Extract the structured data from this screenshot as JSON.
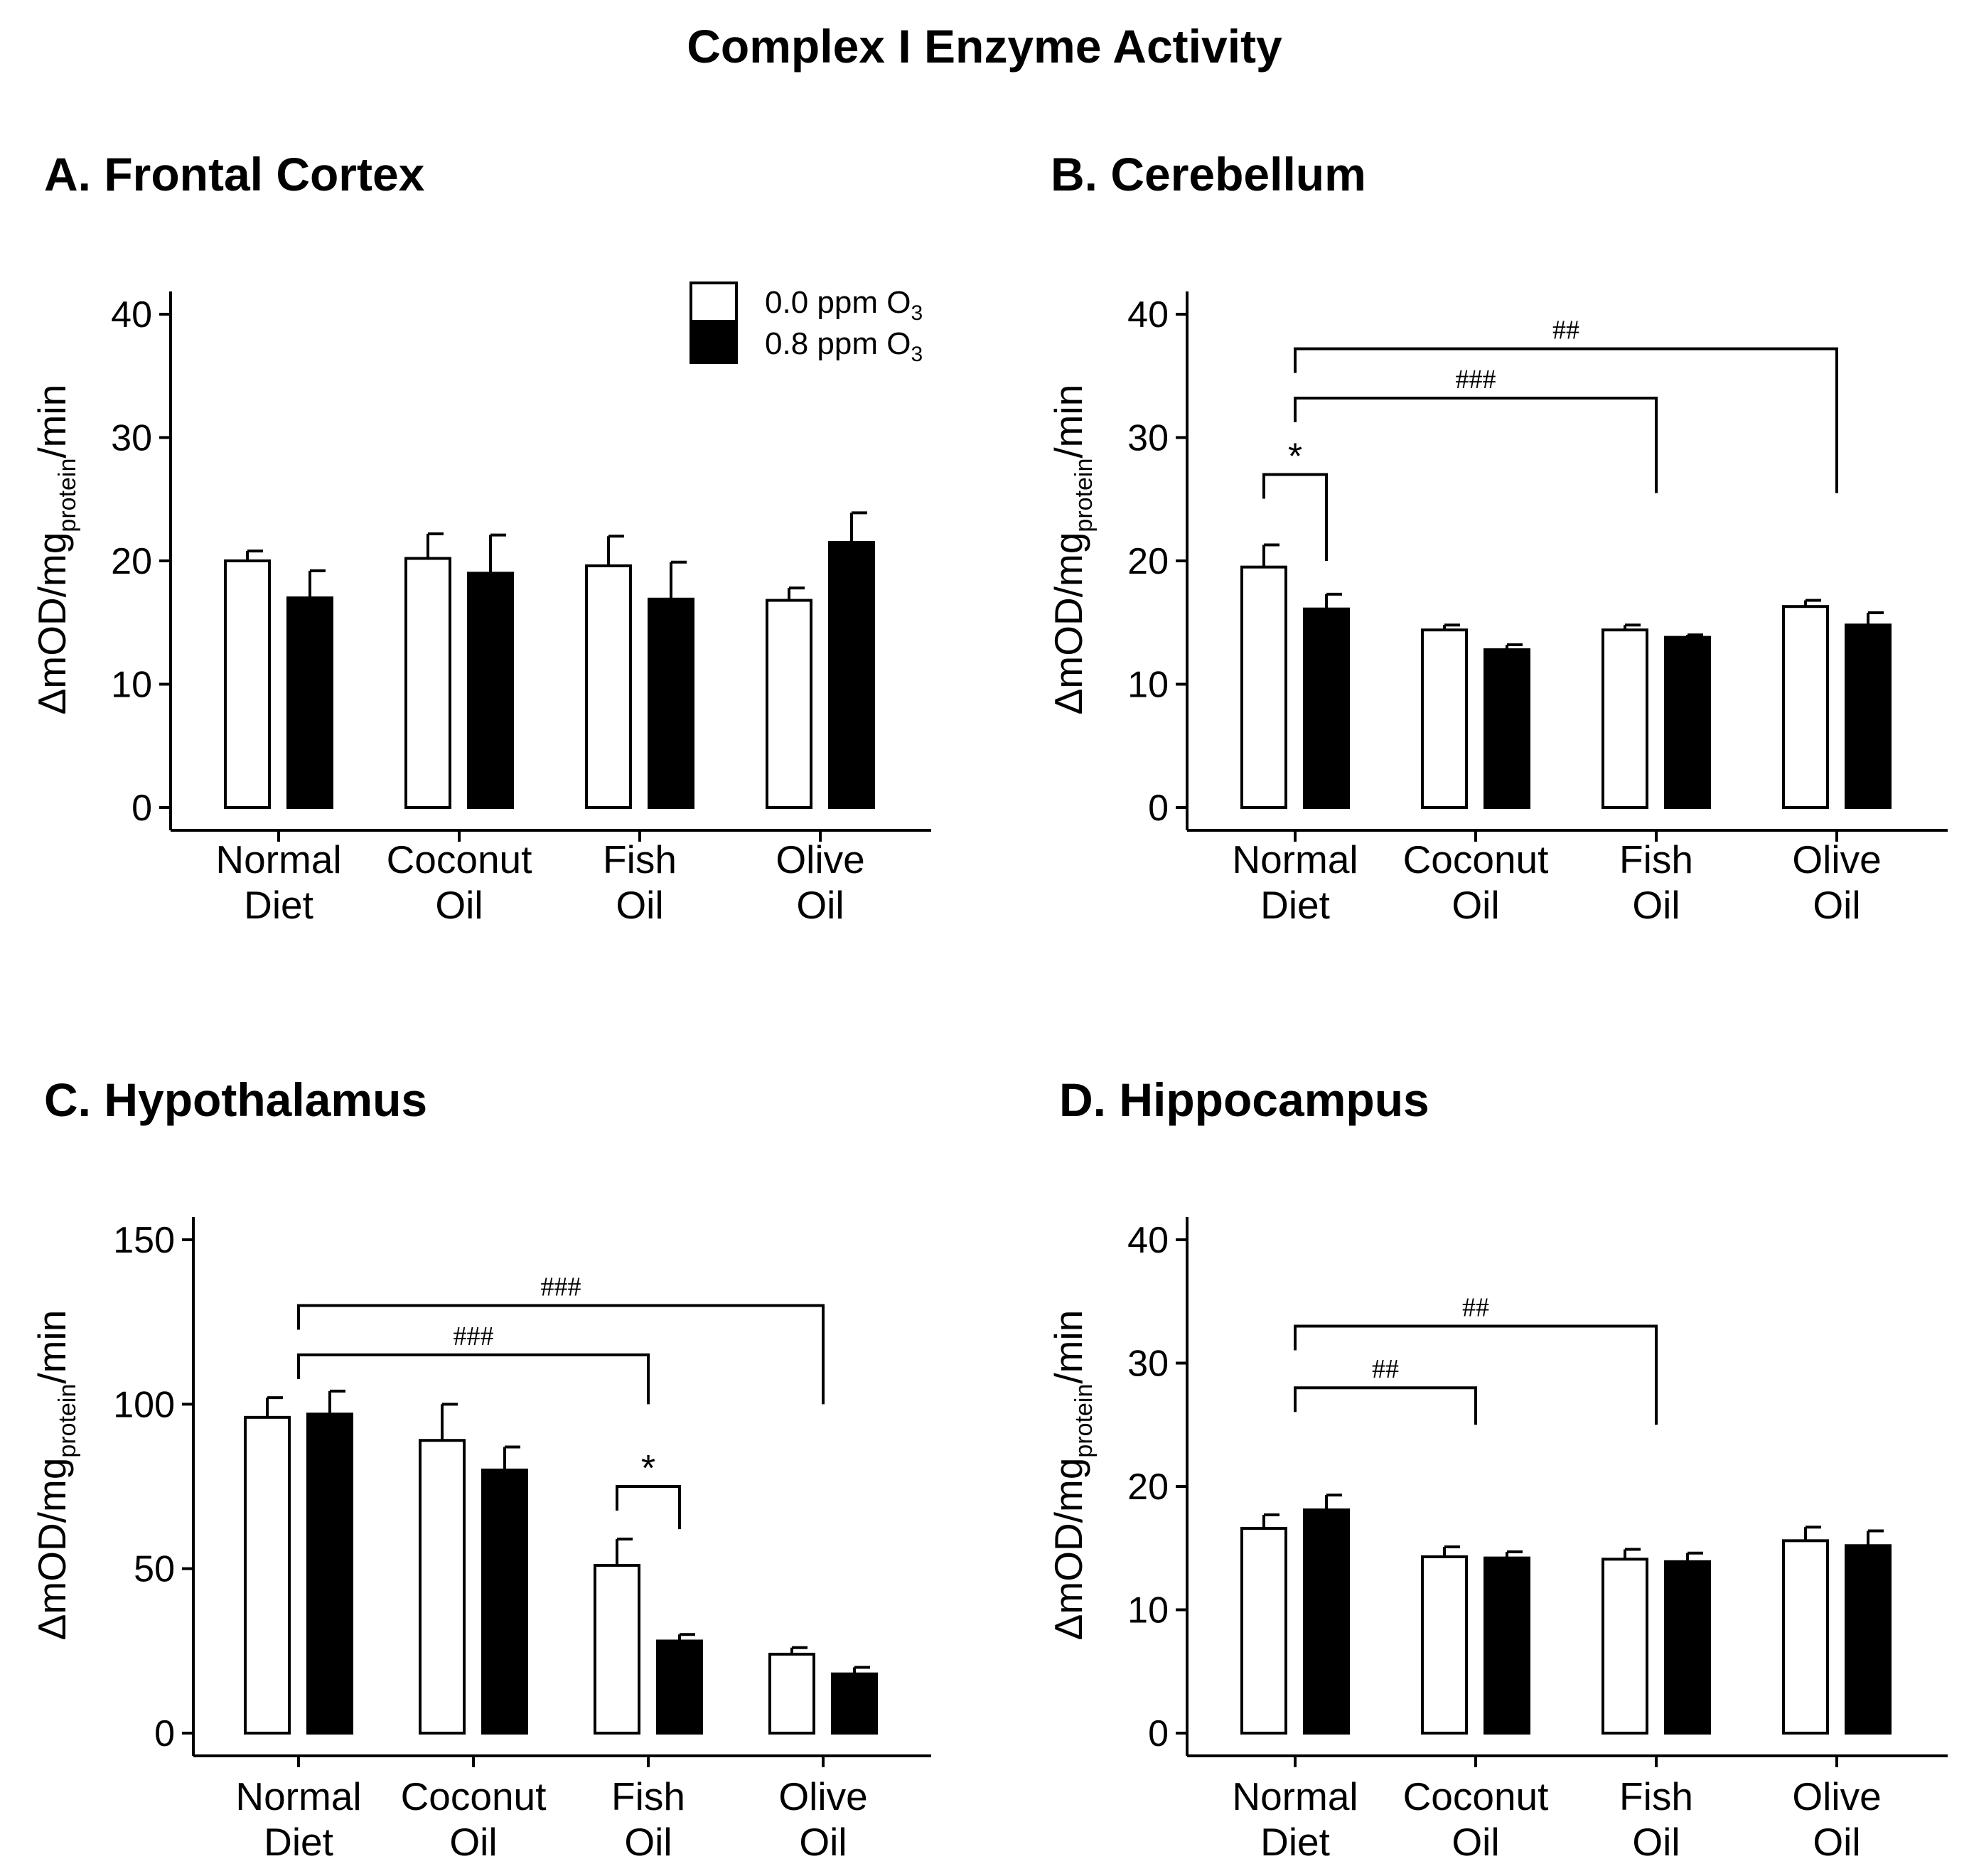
{
  "figure": {
    "title": "Complex I Enzyme Activity"
  },
  "legend": {
    "control_label": "0.0 ppm O",
    "exposed_label": "0.8 ppm O",
    "subscript": "3",
    "control_color": "#ffffff",
    "exposed_color": "#000000"
  },
  "colors": {
    "outline": "#000000",
    "background": "#ffffff"
  },
  "chart_data": [
    {
      "id": "A",
      "type": "bar",
      "title": "A. Frontal Cortex",
      "ylabel_main": "ΔmOD/mg",
      "ylabel_sub": "protein",
      "ylabel_tail": "/min",
      "categories": [
        [
          "Normal",
          "Diet"
        ],
        [
          "Coconut",
          "Oil"
        ],
        [
          "Fish",
          "Oil"
        ],
        [
          "Olive",
          "Oil"
        ]
      ],
      "ylim": [
        0,
        40
      ],
      "yticks": [
        0,
        10,
        20,
        30,
        40
      ],
      "series": [
        {
          "name": "0.0 ppm O3",
          "values": [
            20.0,
            20.2,
            19.6,
            16.8
          ],
          "errors": [
            0.8,
            2.0,
            2.4,
            1.0
          ]
        },
        {
          "name": "0.8 ppm O3",
          "values": [
            17.0,
            19.0,
            16.9,
            21.5
          ],
          "errors": [
            2.2,
            3.1,
            3.0,
            2.4
          ]
        }
      ],
      "brackets": [],
      "show_legend": true
    },
    {
      "id": "B",
      "type": "bar",
      "title": "B. Cerebellum",
      "ylabel_main": "ΔmOD/mg",
      "ylabel_sub": "protein",
      "ylabel_tail": "/min",
      "categories": [
        [
          "Normal",
          "Diet"
        ],
        [
          "Coconut",
          "Oil"
        ],
        [
          "Fish",
          "Oil"
        ],
        [
          "Olive",
          "Oil"
        ]
      ],
      "ylim": [
        0,
        40
      ],
      "yticks": [
        0,
        10,
        20,
        30,
        40
      ],
      "series": [
        {
          "name": "0.0 ppm O3",
          "values": [
            19.5,
            14.4,
            14.4,
            16.3
          ],
          "errors": [
            1.8,
            0.4,
            0.4,
            0.5
          ]
        },
        {
          "name": "0.8 ppm O3",
          "values": [
            16.1,
            12.8,
            13.8,
            14.8
          ],
          "errors": [
            1.2,
            0.4,
            0.2,
            1.0
          ]
        }
      ],
      "brackets": [
        {
          "from": 0,
          "to": 3,
          "y": 37.2,
          "drop_to": 25.5,
          "label": "##",
          "kind": "group"
        },
        {
          "from": 0,
          "to": 2,
          "y": 33.2,
          "drop_to": 25.5,
          "label": "###",
          "kind": "group"
        },
        {
          "from": 0,
          "to": 0,
          "y": 27.0,
          "drop_to": 20.0,
          "label": "*",
          "kind": "pair"
        }
      ],
      "show_legend": false
    },
    {
      "id": "C",
      "type": "bar",
      "title": "C. Hypothalamus",
      "ylabel_main": "ΔmOD/mg",
      "ylabel_sub": "protein",
      "ylabel_tail": "/min",
      "categories": [
        [
          "Normal",
          "Diet"
        ],
        [
          "Coconut",
          "Oil"
        ],
        [
          "Fish",
          "Oil"
        ],
        [
          "Olive",
          "Oil"
        ]
      ],
      "ylim": [
        0,
        150
      ],
      "yticks": [
        0,
        50,
        100,
        150
      ],
      "series": [
        {
          "name": "0.0 ppm O3",
          "values": [
            96,
            89,
            51,
            24
          ],
          "errors": [
            6,
            11,
            8,
            2
          ]
        },
        {
          "name": "0.8 ppm O3",
          "values": [
            97,
            80,
            28,
            18
          ],
          "errors": [
            7,
            7,
            2,
            2
          ]
        }
      ],
      "brackets": [
        {
          "from": 0,
          "to": 3,
          "y": 130,
          "drop_to": 100,
          "label": "###",
          "kind": "group"
        },
        {
          "from": 0,
          "to": 2,
          "y": 115,
          "drop_to": 100,
          "label": "###",
          "kind": "group"
        },
        {
          "from": 2,
          "to": 2,
          "y": 75,
          "drop_to": 62,
          "label": "*",
          "kind": "pair"
        }
      ],
      "show_legend": false
    },
    {
      "id": "D",
      "type": "bar",
      "title": "D. Hippocampus",
      "ylabel_main": "ΔmOD/mg",
      "ylabel_sub": "protein",
      "ylabel_tail": "/min",
      "categories": [
        [
          "Normal",
          "Diet"
        ],
        [
          "Coconut",
          "Oil"
        ],
        [
          "Fish",
          "Oil"
        ],
        [
          "Olive",
          "Oil"
        ]
      ],
      "ylim": [
        0,
        40
      ],
      "yticks": [
        0,
        10,
        20,
        30,
        40
      ],
      "series": [
        {
          "name": "0.0 ppm O3",
          "values": [
            16.6,
            14.3,
            14.1,
            15.6
          ],
          "errors": [
            1.1,
            0.8,
            0.8,
            1.1
          ]
        },
        {
          "name": "0.8 ppm O3",
          "values": [
            18.1,
            14.2,
            13.9,
            15.2
          ],
          "errors": [
            1.2,
            0.5,
            0.7,
            1.2
          ]
        }
      ],
      "brackets": [
        {
          "from": 0,
          "to": 2,
          "y": 33.0,
          "drop_to": 25.0,
          "label": "##",
          "kind": "group"
        },
        {
          "from": 0,
          "to": 1,
          "y": 28.0,
          "drop_to": 25.0,
          "label": "##",
          "kind": "group"
        }
      ],
      "show_legend": false
    }
  ]
}
